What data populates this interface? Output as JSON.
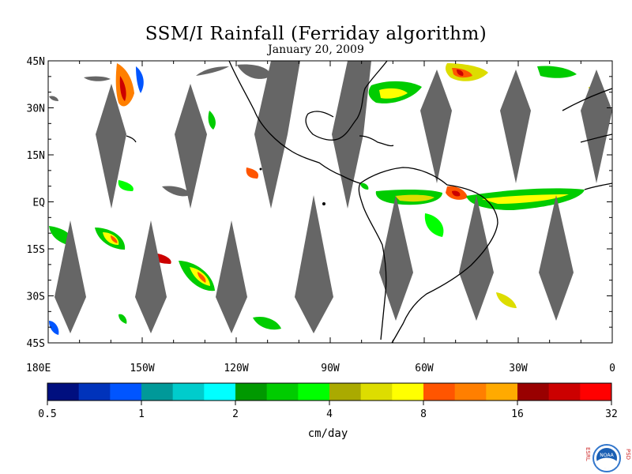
{
  "title": "SSM/I Rainfall (Ferriday algorithm)",
  "date": "January 20, 2009",
  "lat_labels": [
    "45N",
    "30N",
    "15N",
    "EQ",
    "15S",
    "30S",
    "45S"
  ],
  "lat_values": [
    45,
    30,
    15,
    0,
    -15,
    -30,
    -45
  ],
  "lon_labels": [
    "180E",
    "150W",
    "120W",
    "90W",
    "60W",
    "30W",
    "0"
  ],
  "lon_values": [
    -180,
    -150,
    -120,
    -90,
    -60,
    -30,
    0
  ],
  "colorbar": {
    "colors": [
      "#000f7f",
      "#0033bb",
      "#0055ff",
      "#009999",
      "#00cccc",
      "#00ffff",
      "#009900",
      "#00cc00",
      "#00ff00",
      "#aaaa00",
      "#dddd00",
      "#ffff00",
      "#ff5500",
      "#ff7f00",
      "#ffaa00",
      "#990000",
      "#cc0000",
      "#ff0000"
    ],
    "tick_labels": [
      "0.5",
      "1",
      "2",
      "4",
      "8",
      "16",
      "32"
    ],
    "units": "cm/day"
  },
  "colors": {
    "no_data": "#666666",
    "coast": "#000000"
  },
  "logo": {
    "org_left": "ESRL",
    "org_right": "PSD",
    "emblem": "NOAA"
  }
}
